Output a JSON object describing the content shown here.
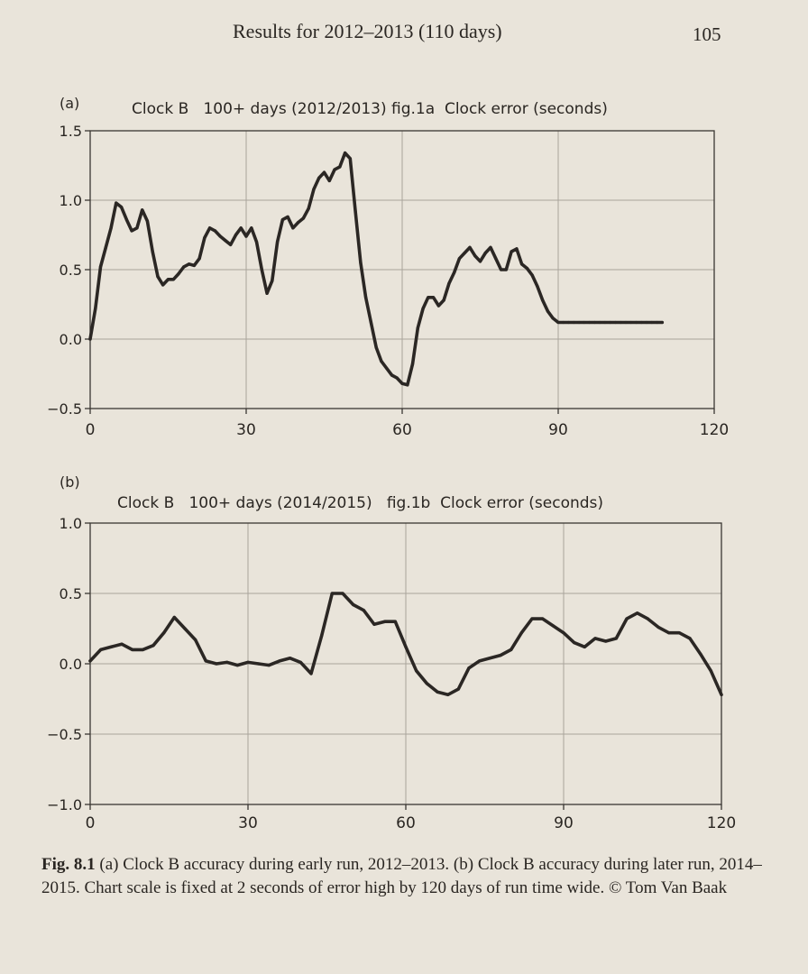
{
  "page": {
    "running_title": "Results for 2012–2013 (110 days)",
    "page_number": "105"
  },
  "caption": {
    "label": "Fig. 8.1",
    "text": "(a) Clock B accuracy during early run, 2012–2013. (b) Clock B accuracy during later run, 2014–2015. Chart scale is fixed at 2 seconds of error high by 120 days of run time wide. © Tom Van Baak"
  },
  "chart_data": [
    {
      "type": "line",
      "panel_label": "(a)",
      "title": "Clock B   100+ days (2012/2013) fig.1a  Clock error (seconds)",
      "xlabel": "",
      "ylabel": "",
      "xlim": [
        0,
        120
      ],
      "ylim": [
        -0.5,
        1.5
      ],
      "xticks": [
        0,
        30,
        60,
        90,
        120
      ],
      "yticks": [
        -0.5,
        0.0,
        0.5,
        1.0,
        1.5
      ],
      "ytick_labels": [
        "−0.5",
        "0.0",
        "0.5",
        "1.0",
        "1.5"
      ],
      "grid": true,
      "series": [
        {
          "x": [
            0,
            1,
            2,
            3,
            4,
            5,
            6,
            7,
            8,
            9,
            10,
            11,
            12,
            13,
            14,
            15,
            16,
            17,
            18,
            19,
            20,
            21,
            22,
            23,
            24,
            25,
            26,
            27,
            28,
            29,
            30,
            31,
            32,
            33,
            34,
            35,
            36,
            37,
            38,
            39,
            40,
            41,
            42,
            43,
            44,
            45,
            46,
            47,
            48,
            49,
            50,
            51,
            52,
            53,
            54,
            55,
            56,
            57,
            58,
            59,
            60,
            61,
            62,
            63,
            64,
            65,
            66,
            67,
            68,
            69,
            70,
            71,
            72,
            73,
            74,
            75,
            76,
            77,
            78,
            79,
            80,
            81,
            82,
            83,
            84,
            85,
            86,
            87,
            88,
            89,
            90,
            91,
            92,
            93,
            94,
            95,
            96,
            97,
            98,
            99,
            100,
            101,
            102,
            103,
            104,
            105,
            106,
            107,
            108,
            109,
            110
          ],
          "y": [
            0.0,
            0.22,
            0.52,
            0.66,
            0.8,
            0.98,
            0.95,
            0.86,
            0.78,
            0.8,
            0.93,
            0.85,
            0.63,
            0.45,
            0.39,
            0.43,
            0.43,
            0.47,
            0.52,
            0.54,
            0.53,
            0.58,
            0.73,
            0.8,
            0.78,
            0.74,
            0.71,
            0.68,
            0.75,
            0.8,
            0.74,
            0.8,
            0.7,
            0.5,
            0.33,
            0.42,
            0.7,
            0.86,
            0.88,
            0.8,
            0.84,
            0.87,
            0.94,
            1.08,
            1.16,
            1.2,
            1.14,
            1.22,
            1.24,
            1.34,
            1.3,
            0.92,
            0.55,
            0.3,
            0.12,
            -0.06,
            -0.16,
            -0.21,
            -0.26,
            -0.28,
            -0.32,
            -0.33,
            -0.18,
            0.08,
            0.22,
            0.3,
            0.3,
            0.24,
            0.28,
            0.4,
            0.48,
            0.58,
            0.62,
            0.66,
            0.6,
            0.56,
            0.62,
            0.66,
            0.58,
            0.5,
            0.5,
            0.63,
            0.65,
            0.54,
            0.51,
            0.46,
            0.38,
            0.28,
            0.2,
            0.15,
            0.12,
            0.12,
            0.12,
            0.12,
            0.12,
            0.12,
            0.12,
            0.12,
            0.12,
            0.12,
            0.12,
            0.12,
            0.12,
            0.12,
            0.12,
            0.12,
            0.12,
            0.12,
            0.12,
            0.12,
            0.12
          ]
        }
      ]
    },
    {
      "type": "line",
      "panel_label": "(b)",
      "title": "Clock B   100+ days (2014/2015)   fig.1b  Clock error (seconds)",
      "xlabel": "",
      "ylabel": "",
      "xlim": [
        0,
        120
      ],
      "ylim": [
        -1.0,
        1.0
      ],
      "xticks": [
        0,
        30,
        60,
        90,
        120
      ],
      "yticks": [
        -1.0,
        -0.5,
        0.0,
        0.5,
        1.0
      ],
      "ytick_labels": [
        "−1.0",
        "−0.5",
        "0.0",
        "0.5",
        "1.0"
      ],
      "grid": true,
      "series": [
        {
          "x": [
            0,
            2,
            4,
            6,
            8,
            10,
            12,
            14,
            16,
            18,
            20,
            22,
            24,
            26,
            28,
            30,
            32,
            34,
            36,
            38,
            40,
            42,
            44,
            46,
            48,
            50,
            52,
            54,
            56,
            58,
            60,
            62,
            64,
            66,
            68,
            70,
            72,
            74,
            76,
            78,
            80,
            82,
            84,
            86,
            88,
            90,
            92,
            94,
            96,
            98,
            100,
            102,
            104,
            106,
            108,
            110,
            112,
            114,
            116,
            118,
            120
          ],
          "y": [
            0.02,
            0.1,
            0.12,
            0.14,
            0.1,
            0.1,
            0.13,
            0.22,
            0.33,
            0.25,
            0.17,
            0.02,
            0.0,
            0.01,
            -0.01,
            0.01,
            0.0,
            -0.01,
            0.02,
            0.04,
            0.01,
            -0.07,
            0.2,
            0.5,
            0.5,
            0.42,
            0.38,
            0.28,
            0.3,
            0.3,
            0.12,
            -0.05,
            -0.14,
            -0.2,
            -0.22,
            -0.18,
            -0.03,
            0.02,
            0.04,
            0.06,
            0.1,
            0.22,
            0.32,
            0.32,
            0.27,
            0.22,
            0.15,
            0.12,
            0.18,
            0.16,
            0.18,
            0.32,
            0.36,
            0.32,
            0.26,
            0.22,
            0.22,
            0.18,
            0.07,
            -0.05,
            -0.22
          ]
        }
      ]
    }
  ]
}
